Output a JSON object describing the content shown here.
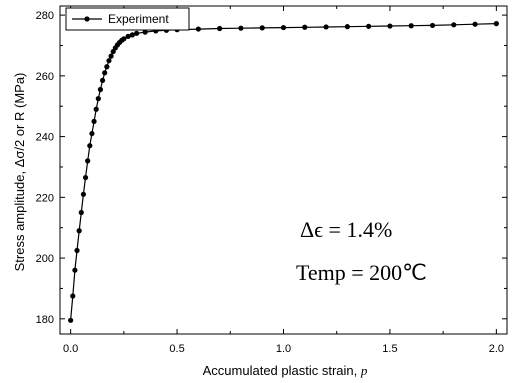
{
  "chart_data": {
    "type": "line",
    "xlabel": "Accumulated plastic strain, ",
    "xlabel_var": "p",
    "ylabel": "Stress amplitude, Δσ/2 or R (MPa)",
    "xlim": [
      -0.05,
      2.05
    ],
    "ylim": [
      175,
      283
    ],
    "xticks": [
      0.0,
      0.5,
      1.0,
      1.5,
      2.0
    ],
    "xtick_labels": [
      "0.0",
      "0.5",
      "1.0",
      "1.5",
      "2.0"
    ],
    "yticks": [
      180,
      200,
      220,
      240,
      260,
      280
    ],
    "ytick_labels": [
      "180",
      "200",
      "220",
      "240",
      "260",
      "280"
    ],
    "grid": false,
    "legend_position": "top-left",
    "series": [
      {
        "name": "Experiment",
        "color": "#000000",
        "marker": "circle",
        "x": [
          0.0,
          0.01,
          0.02,
          0.03,
          0.04,
          0.05,
          0.06,
          0.07,
          0.08,
          0.09,
          0.1,
          0.11,
          0.12,
          0.13,
          0.14,
          0.15,
          0.16,
          0.17,
          0.18,
          0.19,
          0.2,
          0.21,
          0.22,
          0.23,
          0.24,
          0.25,
          0.27,
          0.29,
          0.31,
          0.35,
          0.4,
          0.45,
          0.5,
          0.6,
          0.7,
          0.8,
          0.9,
          1.0,
          1.1,
          1.2,
          1.3,
          1.4,
          1.5,
          1.6,
          1.7,
          1.8,
          1.9,
          2.0
        ],
        "y": [
          179.5,
          187.5,
          196,
          202.5,
          209,
          215,
          221,
          226.5,
          232,
          237,
          241,
          245,
          249,
          252.5,
          255.5,
          258.5,
          261,
          263,
          265,
          266.5,
          268,
          269.2,
          270.2,
          271,
          271.7,
          272.2,
          273,
          273.5,
          274,
          274.4,
          274.8,
          275,
          275.2,
          275.4,
          275.6,
          275.7,
          275.8,
          275.9,
          276,
          276.1,
          276.2,
          276.3,
          276.4,
          276.5,
          276.6,
          276.8,
          277,
          277.2
        ]
      }
    ],
    "annotations": [
      "Δϵ = 1.4%",
      "Temp = 200℃"
    ]
  }
}
